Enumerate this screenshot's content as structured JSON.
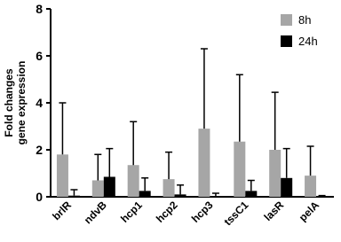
{
  "chart_data": {
    "type": "bar",
    "ylabel": [
      "Fold changes",
      "gene expression"
    ],
    "categories": [
      "brlR",
      "ndvB",
      "hcp1",
      "hcp2",
      "hcp3",
      "tssC1",
      "lasR",
      "pelA"
    ],
    "series": [
      {
        "name": "8h",
        "color": "#a6a6a6",
        "values": [
          1.8,
          0.7,
          1.35,
          0.75,
          2.9,
          2.35,
          2.0,
          0.9
        ],
        "errors": [
          2.2,
          1.1,
          1.85,
          1.15,
          3.4,
          2.85,
          2.45,
          1.25
        ]
      },
      {
        "name": "24h",
        "color": "#000000",
        "values": [
          0.05,
          0.85,
          0.25,
          0.1,
          0.02,
          0.25,
          0.8,
          0.02
        ],
        "errors": [
          0.25,
          1.2,
          0.55,
          0.4,
          0.13,
          0.45,
          1.25,
          0.03
        ]
      }
    ],
    "ylim": [
      0,
      8
    ],
    "yticks": [
      0,
      2,
      4,
      6,
      8
    ],
    "grid": false,
    "legend": "upper right"
  }
}
